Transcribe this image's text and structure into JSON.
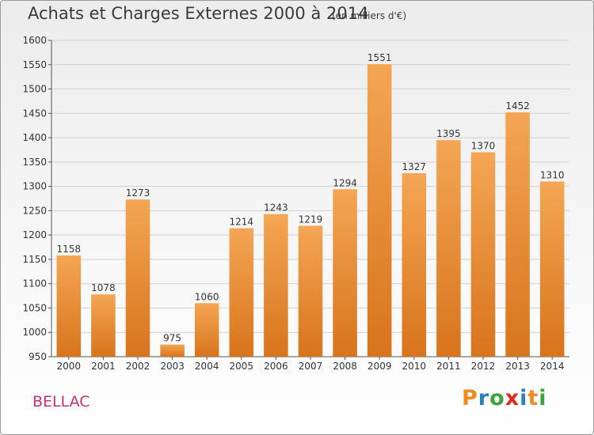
{
  "header": {
    "title": "Achats et Charges Externes 2000 à 2014",
    "subtitle": "(en milliers d'€)"
  },
  "footer": {
    "town": "BELLAC",
    "logo": "Proxiti",
    "logo_colors": [
      "#f08a1c",
      "#2c7fc0",
      "#3aa63a",
      "#e2281e",
      "#2c7fc0",
      "#f08a1c",
      "#3aa63a"
    ]
  },
  "chart_data": {
    "type": "bar",
    "title": "Achats et Charges Externes 2000 à 2014",
    "subtitle": "(en milliers d'€)",
    "xlabel": "",
    "ylabel": "",
    "categories": [
      "2000",
      "2001",
      "2002",
      "2003",
      "2004",
      "2005",
      "2006",
      "2007",
      "2008",
      "2009",
      "2010",
      "2011",
      "2012",
      "2013",
      "2014"
    ],
    "values": [
      1158,
      1078,
      1273,
      975,
      1060,
      1214,
      1243,
      1219,
      1294,
      1551,
      1327,
      1395,
      1370,
      1452,
      1310
    ],
    "ylim": [
      950,
      1600
    ],
    "yticks": [
      950,
      1000,
      1050,
      1100,
      1150,
      1200,
      1250,
      1300,
      1350,
      1400,
      1450,
      1500,
      1550,
      1600
    ],
    "grid": true,
    "data_labels": true,
    "bar_color_top": "#f4a654",
    "bar_color_bottom": "#d8741c"
  }
}
